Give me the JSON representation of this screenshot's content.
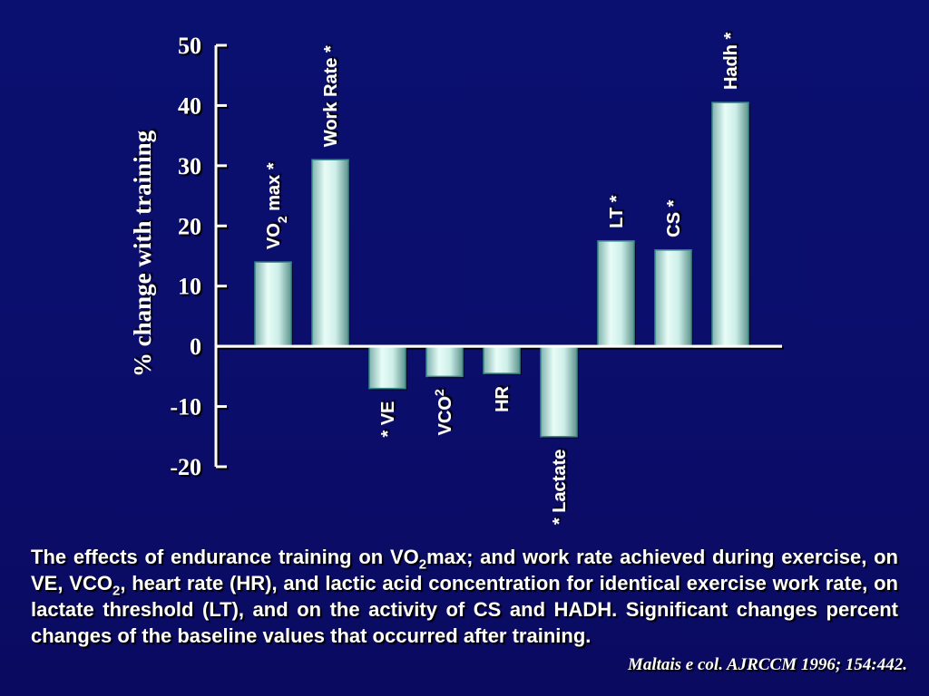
{
  "chart_data": {
    "type": "bar",
    "ylabel": "% change with training",
    "ylim": [
      -20,
      50
    ],
    "yticks": [
      50,
      40,
      30,
      20,
      10,
      0,
      -10,
      -20
    ],
    "ytick_labels": [
      "50",
      "40",
      "30",
      "20",
      "10",
      "0",
      "-10",
      "-20"
    ],
    "grid": false,
    "categories": [
      "VO2 max",
      "Work Rate",
      "VE",
      "VCO2",
      "HR",
      "Lactate",
      "LT",
      "CS",
      "Hadh"
    ],
    "values": [
      14,
      31,
      -7,
      -5,
      -4.5,
      -15,
      17.5,
      16,
      40.5
    ],
    "bar_labels": [
      {
        "main": "VO",
        "sub": "2",
        "rest": " max ",
        "star": "*",
        "star_position": "after"
      },
      {
        "main": "Work Rate ",
        "sub": "",
        "rest": "",
        "star": "*",
        "star_position": "after"
      },
      {
        "main": "VE",
        "sub": "",
        "rest": "",
        "star": "*",
        "star_position": "before"
      },
      {
        "main": "VCO",
        "sup": "2",
        "rest": "",
        "star": "",
        "star_position": "none"
      },
      {
        "main": "HR",
        "sub": "",
        "rest": "",
        "star": "",
        "star_position": "none"
      },
      {
        "main": "Lactate",
        "sub": "",
        "rest": "",
        "star": "*",
        "star_position": "before"
      },
      {
        "main": "LT ",
        "sub": "",
        "rest": "",
        "star": "*",
        "star_position": "after"
      },
      {
        "main": "CS ",
        "sub": "",
        "rest": "",
        "star": "*",
        "star_position": "after"
      },
      {
        "main": "Hadh ",
        "sub": "",
        "rest": "",
        "star": "*",
        "star_position": "after"
      }
    ],
    "colors": {
      "background": "#0b0e6b",
      "bar_edge": "#3a8a8a",
      "bar_light": "#e6fbf6",
      "bar_dark": "#6a9e98",
      "axis": "#ffffff",
      "text": "#ffffff"
    }
  },
  "caption": {
    "line1_a": "The effects of endurance training on VO",
    "line1_sub": "2",
    "line1_b": "max; and work rate achieved during exercise, on VE, VCO",
    "line2_sub": "2",
    "line2_b": ", heart rate (HR), and lactic acid concentration for identical exercise work rate, on lactate threshold (LT), and on the activity of CS and HADH. Significant changes percent changes of the baseline values that occurred after training."
  },
  "citation": "Maltais e col. AJRCCM 1996; 154:442."
}
